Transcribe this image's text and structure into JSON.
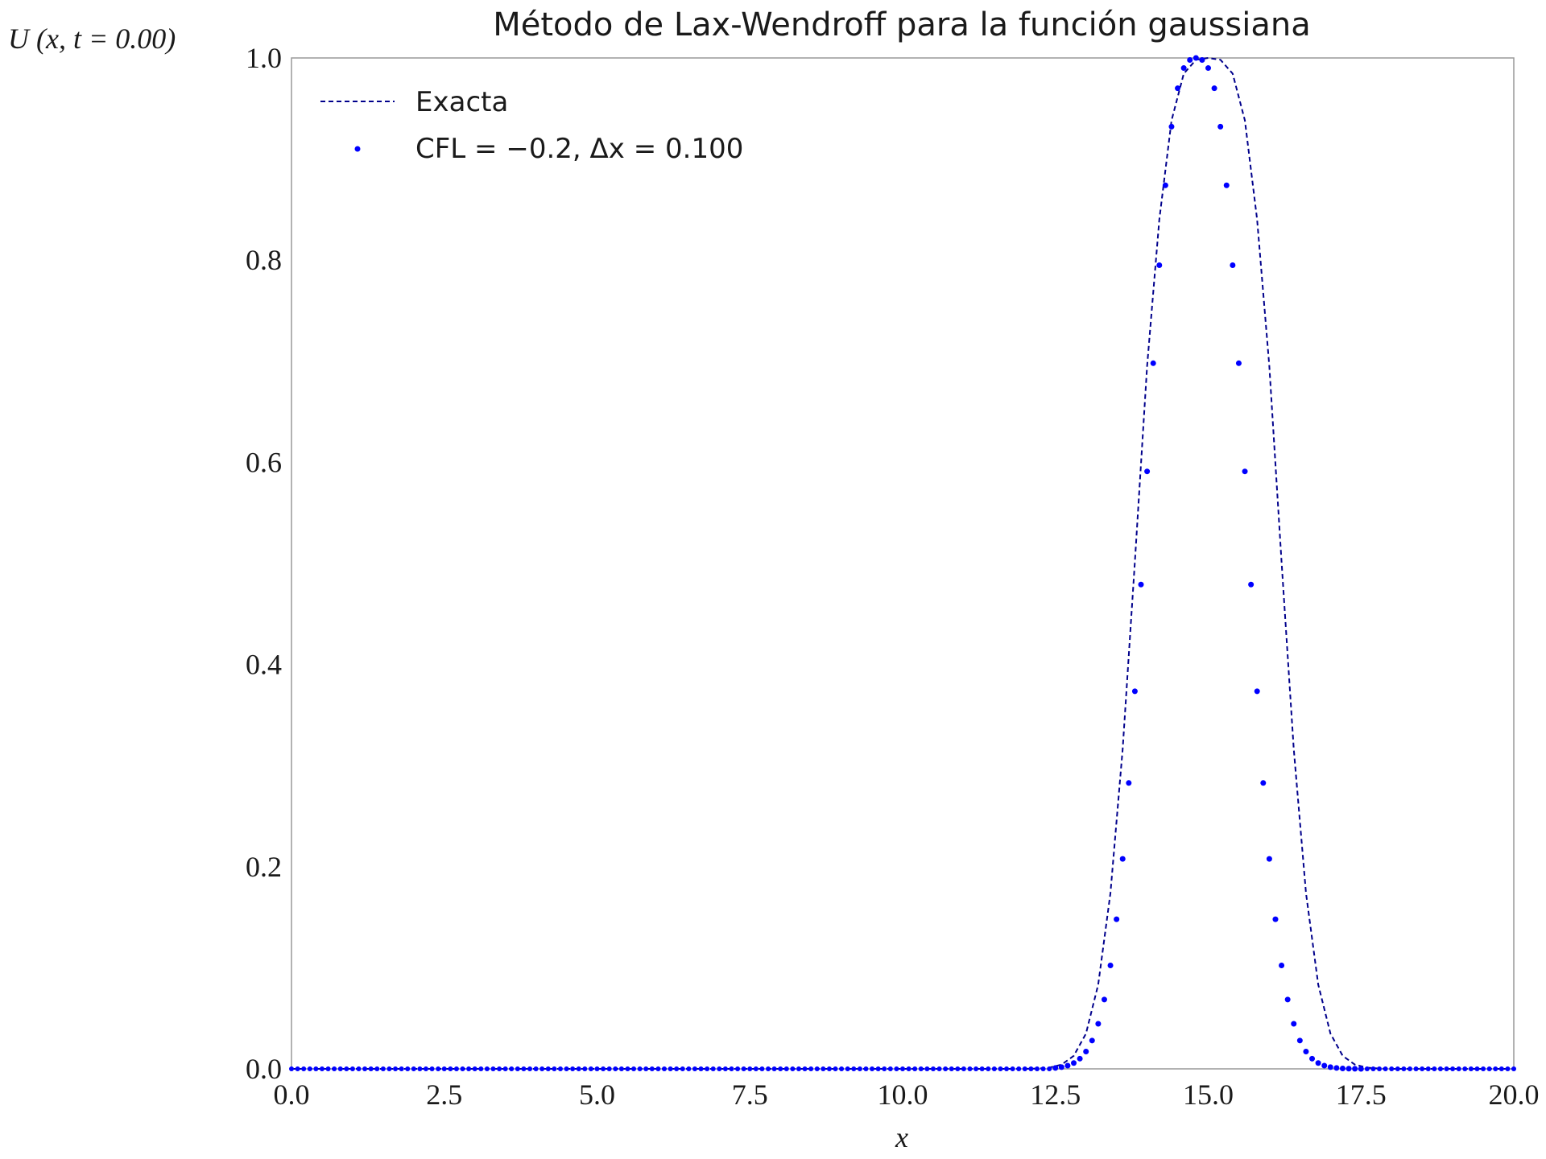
{
  "chart_data": {
    "type": "line",
    "title": "Método de Lax-Wendroff para la función gaussiana",
    "xlabel": "x",
    "ylabel": "U (x, t = 0.00)",
    "xlim": [
      0,
      20
    ],
    "ylim": [
      0,
      1
    ],
    "xticks": [
      "0.0",
      "2.5",
      "5.0",
      "7.5",
      "10.0",
      "12.5",
      "15.0",
      "17.5",
      "20.0"
    ],
    "yticks": [
      "0.0",
      "0.2",
      "0.4",
      "0.6",
      "0.8",
      "1.0"
    ],
    "grid": false,
    "legend_position": "top-left",
    "colors": {
      "exact": "#00008b",
      "numeric": "#0000ff",
      "frame": "#999999"
    },
    "series": [
      {
        "name": "Exacta",
        "style": "dashed-line",
        "x": [
          12.0,
          12.2,
          12.4,
          12.6,
          12.8,
          13.0,
          13.2,
          13.4,
          13.6,
          13.8,
          14.0,
          14.2,
          14.4,
          14.6,
          14.8,
          15.0,
          15.2,
          15.4,
          15.6,
          15.8,
          16.0,
          16.2,
          16.4,
          16.6,
          16.8,
          17.0,
          17.2,
          17.4,
          17.6,
          17.8,
          18.0
        ],
        "y": [
          0.0,
          0.0003,
          0.0012,
          0.0042,
          0.0129,
          0.0349,
          0.0834,
          0.1738,
          0.3161,
          0.5016,
          0.6951,
          0.8402,
          0.9382,
          0.9845,
          0.9982,
          1.0,
          0.9982,
          0.9845,
          0.9382,
          0.8402,
          0.6951,
          0.5016,
          0.3161,
          0.1738,
          0.0834,
          0.0349,
          0.0129,
          0.0042,
          0.0012,
          0.0003,
          0.0
        ]
      },
      {
        "name": "CFL = −0.2, Δx = 0.100",
        "style": "points",
        "x": [
          12.5,
          12.6,
          12.7,
          12.8,
          12.9,
          13.0,
          13.1,
          13.2,
          13.3,
          13.4,
          13.5,
          13.6,
          13.7,
          13.8,
          13.9,
          14.0,
          14.1,
          14.2,
          14.3,
          14.4,
          14.5,
          14.6,
          14.7,
          14.8,
          14.9,
          15.0,
          15.1,
          15.2,
          15.3,
          15.4,
          15.5,
          15.6,
          15.7,
          15.8,
          15.9,
          16.0,
          16.1,
          16.2,
          16.3,
          16.4,
          16.5,
          16.6,
          16.7,
          16.8,
          16.9,
          17.0,
          17.1,
          17.2,
          17.3,
          17.4,
          17.5
        ],
        "y": [
          0.0009,
          0.0017,
          0.0032,
          0.0058,
          0.0101,
          0.0171,
          0.028,
          0.0446,
          0.0686,
          0.1023,
          0.148,
          0.2077,
          0.2828,
          0.3735,
          0.4791,
          0.591,
          0.698,
          0.795,
          0.874,
          0.932,
          0.97,
          0.99,
          0.998,
          1.0,
          0.998,
          0.99,
          0.97,
          0.932,
          0.874,
          0.795,
          0.698,
          0.591,
          0.4791,
          0.3735,
          0.2828,
          0.2077,
          0.148,
          0.1023,
          0.0686,
          0.0446,
          0.028,
          0.0171,
          0.0101,
          0.0058,
          0.0032,
          0.0017,
          0.0009,
          0.0004,
          0.0002,
          0.0001,
          0.0
        ]
      }
    ]
  }
}
